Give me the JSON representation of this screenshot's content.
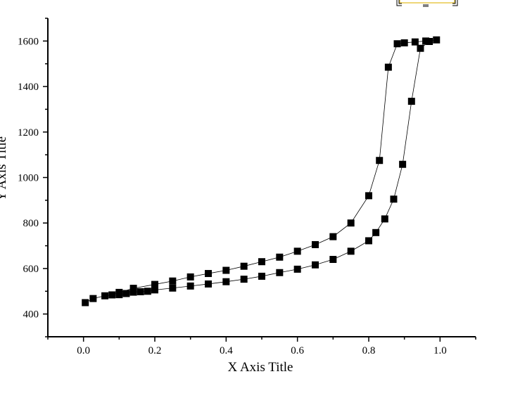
{
  "chart_data": {
    "type": "scatter",
    "title": "",
    "xlabel": "X Axis Title",
    "ylabel": "Y Axis Title",
    "xlim": [
      -0.1,
      1.1
    ],
    "ylim": [
      300,
      1700
    ],
    "xticks": [
      "0.0",
      "0.2",
      "0.4",
      "0.6",
      "0.8",
      "1.0"
    ],
    "xtick_values": [
      0,
      0.2,
      0.4,
      0.6,
      0.8,
      1.0
    ],
    "yticks": [
      "400",
      "600",
      "800",
      "1000",
      "1200",
      "1400",
      "1600"
    ],
    "ytick_values": [
      400,
      600,
      800,
      1000,
      1200,
      1400,
      1600
    ],
    "grid": false,
    "marker": "square",
    "line_style": "thin solid connecting line",
    "colors": {
      "marker": "#000000",
      "line": "#000000",
      "legend_frame": "#e8c84a"
    },
    "series": [
      {
        "x": [
          0.005,
          0.027,
          0.06,
          0.08,
          0.1,
          0.14,
          0.2,
          0.25,
          0.3,
          0.35,
          0.4,
          0.45,
          0.5,
          0.55,
          0.6,
          0.65,
          0.7,
          0.75,
          0.8,
          0.83,
          0.855,
          0.88,
          0.9,
          0.93,
          0.96,
          0.99
        ],
        "y": [
          450,
          468,
          480,
          484,
          495,
          513,
          530,
          545,
          563,
          578,
          592,
          610,
          630,
          650,
          676,
          705,
          740,
          800,
          920,
          1075,
          1485,
          1588,
          1592,
          1596,
          1600,
          1605
        ]
      },
      {
        "x": [
          0.1,
          0.12,
          0.14,
          0.16,
          0.18,
          0.2,
          0.25,
          0.3,
          0.35,
          0.4,
          0.45,
          0.5,
          0.55,
          0.6,
          0.65,
          0.7,
          0.75,
          0.8,
          0.82,
          0.845,
          0.87,
          0.895,
          0.92,
          0.945,
          0.97
        ],
        "y": [
          485,
          490,
          496,
          498,
          500,
          506,
          514,
          523,
          532,
          542,
          553,
          566,
          582,
          597,
          616,
          640,
          676,
          722,
          758,
          818,
          905,
          1058,
          1335,
          1568,
          1598
        ]
      }
    ]
  }
}
